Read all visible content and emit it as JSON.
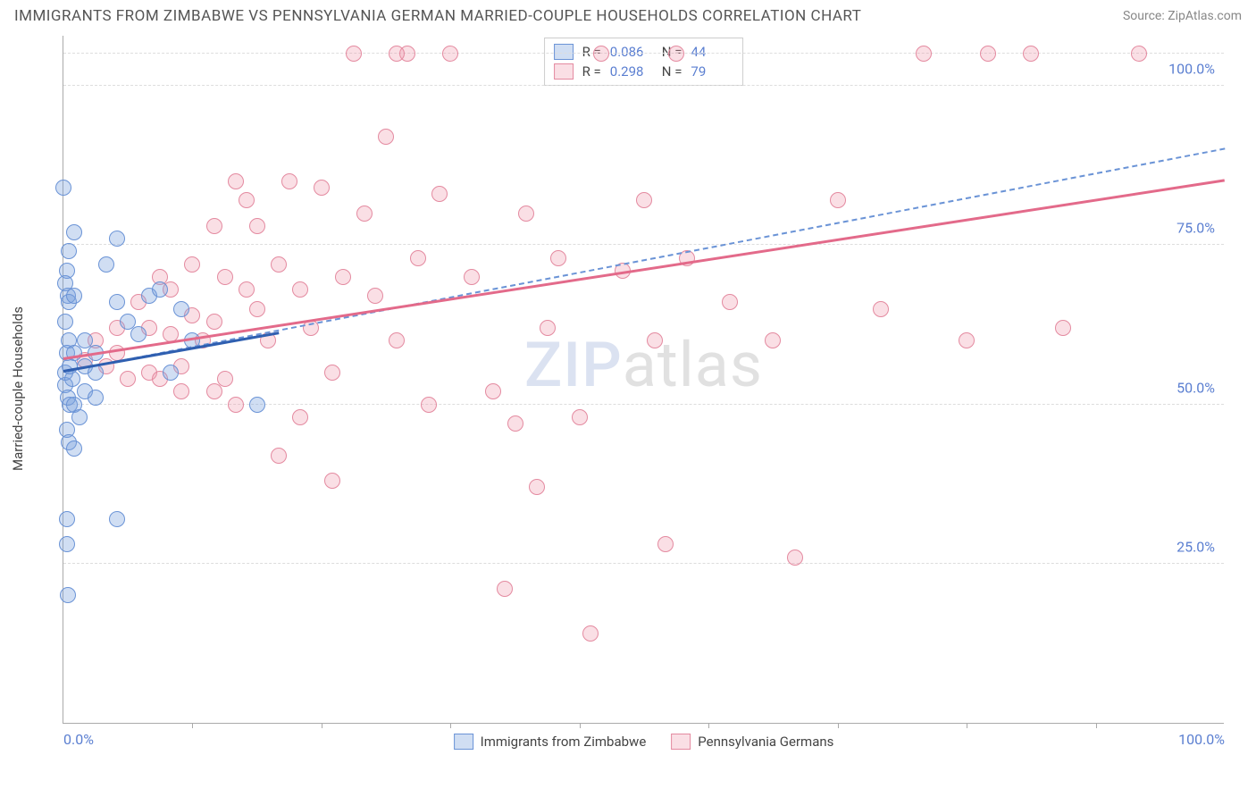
{
  "header": {
    "title": "IMMIGRANTS FROM ZIMBABWE VS PENNSYLVANIA GERMAN MARRIED-COUPLE HOUSEHOLDS CORRELATION CHART",
    "source": "Source: ZipAtlas.com"
  },
  "watermark": {
    "part1": "ZIP",
    "part2": "atlas"
  },
  "chart": {
    "type": "scatter",
    "background_color": "#ffffff",
    "grid_color": "#dddddd",
    "axis_color": "#aaaaaa",
    "label_color": "#5b7fd1",
    "ylabel": "Married-couple Households",
    "xlim": [
      0,
      108
    ],
    "ylim": [
      0,
      108
    ],
    "yticks": [
      {
        "v": 25,
        "label": "25.0%"
      },
      {
        "v": 50,
        "label": "50.0%"
      },
      {
        "v": 75,
        "label": "75.0%"
      },
      {
        "v": 100,
        "label": "100.0%"
      }
    ],
    "xticks_minor": [
      12,
      24,
      36,
      48,
      60,
      72,
      84,
      96
    ],
    "xtick_labels": [
      {
        "v": 0,
        "label": "0.0%"
      },
      {
        "v": 108,
        "label": "100.0%"
      }
    ],
    "point_radius": 9,
    "series": {
      "blue": {
        "name": "Immigrants from Zimbabwe",
        "fill": "rgba(120,160,220,0.35)",
        "stroke": "#6a93d6",
        "R": "0.086",
        "N": "44",
        "trend_solid": {
          "x1": 0,
          "y1": 55,
          "x2": 20,
          "y2": 61,
          "color": "#2f5fb0"
        },
        "trend_dash": {
          "x1": 0,
          "y1": 55,
          "x2": 108,
          "y2": 90,
          "color": "#6a93d6"
        },
        "points": [
          [
            0,
            84
          ],
          [
            1,
            77
          ],
          [
            0.5,
            74
          ],
          [
            0.3,
            71
          ],
          [
            0.2,
            69
          ],
          [
            0.4,
            67
          ],
          [
            0.5,
            66
          ],
          [
            1,
            67
          ],
          [
            0.2,
            63
          ],
          [
            0.5,
            60
          ],
          [
            0.3,
            58
          ],
          [
            1,
            58
          ],
          [
            2,
            60
          ],
          [
            2,
            56
          ],
          [
            3,
            58
          ],
          [
            3,
            55
          ],
          [
            4,
            72
          ],
          [
            5,
            76
          ],
          [
            5,
            66
          ],
          [
            6,
            63
          ],
          [
            7,
            61
          ],
          [
            8,
            67
          ],
          [
            9,
            68
          ],
          [
            10,
            55
          ],
          [
            0.2,
            53
          ],
          [
            0.4,
            51
          ],
          [
            0.6,
            50
          ],
          [
            1,
            50
          ],
          [
            2,
            52
          ],
          [
            3,
            51
          ],
          [
            1.5,
            48
          ],
          [
            0.3,
            46
          ],
          [
            0.5,
            44
          ],
          [
            1,
            43
          ],
          [
            11,
            65
          ],
          [
            12,
            60
          ],
          [
            0.2,
            55
          ],
          [
            0.8,
            54
          ],
          [
            0.3,
            32
          ],
          [
            5,
            32
          ],
          [
            0.3,
            28
          ],
          [
            18,
            50
          ],
          [
            0.4,
            20
          ],
          [
            0.6,
            56
          ]
        ]
      },
      "pink": {
        "name": "Pennsylvania Germans",
        "fill": "rgba(240,150,170,0.30)",
        "stroke": "#e48aa0",
        "R": "0.298",
        "N": "79",
        "trend_solid": {
          "x1": 0,
          "y1": 57,
          "x2": 108,
          "y2": 85,
          "color": "#e36a8a"
        },
        "points": [
          [
            2,
            57
          ],
          [
            3,
            60
          ],
          [
            4,
            56
          ],
          [
            5,
            62
          ],
          [
            5,
            58
          ],
          [
            6,
            54
          ],
          [
            7,
            66
          ],
          [
            8,
            55
          ],
          [
            8,
            62
          ],
          [
            9,
            70
          ],
          [
            10,
            61
          ],
          [
            10,
            68
          ],
          [
            11,
            56
          ],
          [
            12,
            64
          ],
          [
            12,
            72
          ],
          [
            13,
            60
          ],
          [
            14,
            78
          ],
          [
            14,
            63
          ],
          [
            15,
            70
          ],
          [
            15,
            54
          ],
          [
            16,
            85
          ],
          [
            17,
            68
          ],
          [
            17,
            82
          ],
          [
            18,
            65
          ],
          [
            18,
            78
          ],
          [
            19,
            60
          ],
          [
            20,
            72
          ],
          [
            21,
            85
          ],
          [
            22,
            68
          ],
          [
            23,
            62
          ],
          [
            24,
            84
          ],
          [
            25,
            55
          ],
          [
            26,
            70
          ],
          [
            27,
            105
          ],
          [
            28,
            80
          ],
          [
            29,
            67
          ],
          [
            30,
            92
          ],
          [
            31,
            60
          ],
          [
            32,
            105
          ],
          [
            33,
            73
          ],
          [
            34,
            50
          ],
          [
            35,
            83
          ],
          [
            36,
            105
          ],
          [
            38,
            70
          ],
          [
            40,
            52
          ],
          [
            41,
            21
          ],
          [
            42,
            47
          ],
          [
            43,
            80
          ],
          [
            44,
            37
          ],
          [
            45,
            62
          ],
          [
            46,
            73
          ],
          [
            48,
            48
          ],
          [
            49,
            14
          ],
          [
            50,
            105
          ],
          [
            52,
            71
          ],
          [
            54,
            82
          ],
          [
            55,
            60
          ],
          [
            56,
            28
          ],
          [
            57,
            105
          ],
          [
            58,
            73
          ],
          [
            9,
            54
          ],
          [
            11,
            52
          ],
          [
            20,
            42
          ],
          [
            22,
            48
          ],
          [
            25,
            38
          ],
          [
            14,
            52
          ],
          [
            16,
            50
          ],
          [
            62,
            66
          ],
          [
            66,
            60
          ],
          [
            68,
            26
          ],
          [
            72,
            82
          ],
          [
            76,
            65
          ],
          [
            80,
            105
          ],
          [
            84,
            60
          ],
          [
            86,
            105
          ],
          [
            90,
            105
          ],
          [
            93,
            62
          ],
          [
            31,
            105
          ],
          [
            100,
            105
          ]
        ]
      }
    },
    "stats_box": {
      "R_label": "R =",
      "N_label": "N ="
    },
    "legend": {
      "item1": "Immigrants from Zimbabwe",
      "item2": "Pennsylvania Germans"
    }
  }
}
